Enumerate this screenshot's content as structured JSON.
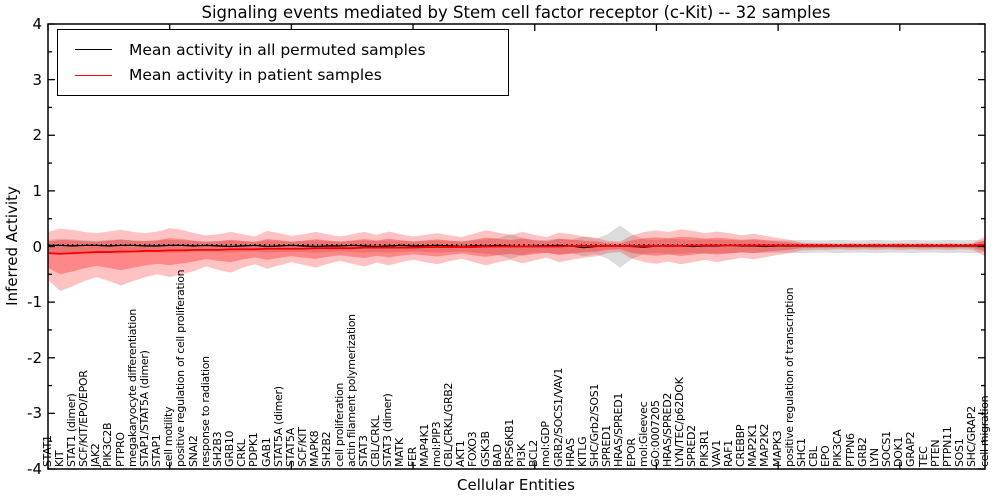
{
  "title": "Signaling events mediated by Stem cell factor receptor (c-Kit) -- 32 samples",
  "axes": {
    "xlabel": "Cellular Entities",
    "ylabel": "Inferred Activity",
    "ylim": [
      -4,
      4
    ],
    "yticks": [
      "4",
      "3",
      "2",
      "1",
      "0",
      "-1",
      "-2",
      "-3",
      "-4"
    ]
  },
  "legend": {
    "items": [
      {
        "label": "Mean activity in all permuted samples",
        "color": "#000000"
      },
      {
        "label": "Mean activity in patient samples",
        "color": "#ff0000"
      }
    ]
  },
  "chart_data": {
    "type": "line",
    "title": "Signaling events mediated by Stem cell factor receptor (c-Kit) -- 32 samples",
    "xlabel": "Cellular Entities",
    "ylabel": "Inferred Activity",
    "ylim": [
      -4,
      4
    ],
    "grid": false,
    "legend_position": "upper left",
    "categories": [
      "STAT1",
      "KIT",
      "STAT1 (dimer)",
      "SCF/KIT/EPO/EPOR",
      "JAK2",
      "PIK3C2B",
      "PTPRO",
      "megakaryocyte differentiation",
      "STAP1/STAT5A (dimer)",
      "STAP1",
      "cell motility",
      "positive regulation of cell proliferation",
      "SNAI2",
      "response to radiation",
      "SH2B3",
      "GRB10",
      "CRKL",
      "PDPK1",
      "GAB1",
      "STAT5A (dimer)",
      "STAT5A",
      "SCF/KIT",
      "MAPK8",
      "SH2B2",
      "cell proliferation",
      "actin filament polymerization",
      "STAT3",
      "CBL/CRKL",
      "STAT3 (dimer)",
      "MATK",
      "FER",
      "MAP4K1",
      "mol:PIP3",
      "CBL/CRKL/GRB2",
      "AKT1",
      "FOXO3",
      "GSK3B",
      "BAD",
      "RPS6KB1",
      "PI3K",
      "BCL2",
      "mol:GDP",
      "GRB2/SOCS1/VAV1",
      "HRAS",
      "KITLG",
      "SHC/Grb2/SOS1",
      "SPRED1",
      "HRAS/SPRED1",
      "EPOR",
      "mol:Gleevec",
      "GO:0007205",
      "HRAS/SPRED2",
      "LYN/TEC/p62DOK",
      "SPRED2",
      "PIK3R1",
      "VAV1",
      "RAF1",
      "CREBBP",
      "MAP2K1",
      "MAP2K2",
      "MAPK3",
      "positive regulation of transcription",
      "SHC1",
      "CBL",
      "EPO",
      "PIK3CA",
      "PTPN6",
      "GRB2",
      "LYN",
      "SOCS1",
      "DOK1",
      "GRAP2",
      "TEC",
      "PTEN",
      "PTPN11",
      "SOS1",
      "SHC/GRAP2",
      "cell migration"
    ],
    "series": [
      {
        "name": "Mean activity in all permuted samples",
        "color": "#000000",
        "style": "solid",
        "values": [
          0.02,
          0.02,
          0.01,
          0.02,
          0.02,
          0.01,
          0.02,
          0.02,
          0.01,
          0.01,
          0.02,
          0.02,
          0.01,
          0.02,
          0.01,
          0.0,
          0.01,
          0.02,
          0.0,
          0.01,
          0.02,
          0.01,
          0.0,
          0.01,
          0.01,
          0.02,
          0.01,
          0.0,
          0.01,
          0.02,
          0.01,
          0.01,
          0.02,
          0.01,
          0.0,
          0.01,
          0.01,
          0.02,
          0.01,
          0.0,
          0.01,
          0.01,
          0.02,
          0.01,
          -0.02,
          0.0,
          0.01,
          0.01,
          0.0,
          -0.01,
          0.01,
          0.02,
          0.01,
          0.0,
          0.01,
          0.01,
          0.02,
          0.01,
          0.01,
          0.0,
          0.01,
          0.01,
          0.01,
          0.01,
          0.01,
          0.01,
          0.01,
          0.01,
          0.01,
          0.01,
          0.01,
          0.01,
          0.01,
          0.01,
          0.01,
          0.01,
          0.01,
          0.01
        ]
      },
      {
        "name": "Mean activity in patient samples",
        "color": "#ff0000",
        "style": "solid",
        "values": [
          -0.12,
          -0.13,
          -0.12,
          -0.11,
          -0.1,
          -0.1,
          -0.09,
          -0.09,
          -0.08,
          -0.08,
          -0.07,
          -0.07,
          -0.06,
          -0.06,
          -0.06,
          -0.05,
          -0.05,
          -0.05,
          -0.04,
          -0.04,
          -0.04,
          -0.04,
          -0.03,
          -0.03,
          -0.03,
          -0.03,
          -0.02,
          -0.02,
          -0.02,
          -0.02,
          -0.02,
          -0.01,
          -0.01,
          -0.01,
          -0.01,
          -0.01,
          0,
          0,
          0,
          0,
          0,
          0,
          0,
          0.01,
          0.01,
          0.01,
          0.01,
          0.01,
          0.01,
          0.01,
          0.01,
          0.01,
          0.01,
          0.02,
          0.02,
          0.02,
          0.02,
          0.02,
          0.02,
          0.02,
          0.02,
          0.02,
          0.02,
          0.02,
          0.02,
          0.02,
          0.02,
          0.02,
          0.02,
          0.02,
          0.02,
          0.02,
          0.02,
          0.02,
          0.02,
          0.02,
          0.02,
          0.03
        ]
      },
      {
        "name": "baseline-dotted",
        "color": "#000000",
        "style": "dotted",
        "value": 0.03
      }
    ],
    "bands": [
      {
        "name": "permuted-samples-range",
        "color": "rgba(130,130,130,0.28)",
        "center": 0,
        "halfwidth": [
          0.12,
          0.14,
          0.13,
          0.11,
          0.1,
          0.12,
          0.13,
          0.11,
          0.1,
          0.11,
          0.12,
          0.11,
          0.1,
          0.09,
          0.1,
          0.11,
          0.1,
          0.09,
          0.11,
          0.1,
          0.09,
          0.1,
          0.11,
          0.1,
          0.09,
          0.1,
          0.11,
          0.1,
          0.11,
          0.1,
          0.09,
          0.1,
          0.11,
          0.1,
          0.09,
          0.11,
          0.13,
          0.15,
          0.22,
          0.15,
          0.11,
          0.12,
          0.14,
          0.12,
          0.18,
          0.14,
          0.22,
          0.38,
          0.22,
          0.13,
          0.12,
          0.14,
          0.13,
          0.12,
          0.13,
          0.12,
          0.12,
          0.11,
          0.12,
          0.11,
          0.11,
          0.11,
          0.12,
          0.11,
          0.11,
          0.12,
          0.11,
          0.11,
          0.12,
          0.11,
          0.11,
          0.12,
          0.11,
          0.11,
          0.12,
          0.11,
          0.12,
          0.1
        ]
      },
      {
        "name": "patient-samples-range-outer",
        "color": "rgba(255,0,0,0.24)",
        "upper": [
          0.26,
          0.32,
          0.3,
          0.26,
          0.24,
          0.27,
          0.3,
          0.26,
          0.24,
          0.27,
          0.33,
          0.3,
          0.24,
          0.2,
          0.22,
          0.26,
          0.22,
          0.18,
          0.28,
          0.24,
          0.19,
          0.22,
          0.26,
          0.22,
          0.18,
          0.22,
          0.26,
          0.21,
          0.27,
          0.22,
          0.18,
          0.21,
          0.24,
          0.2,
          0.17,
          0.23,
          0.29,
          0.25,
          0.21,
          0.26,
          0.21,
          0.17,
          0.25,
          0.22,
          0.18,
          0.16,
          0.1,
          0.09,
          0.2,
          0.26,
          0.29,
          0.26,
          0.31,
          0.28,
          0.24,
          0.27,
          0.24,
          0.2,
          0.23,
          0.19,
          0.15,
          0.12,
          0.07,
          0.06,
          0.06,
          0.05,
          0.06,
          0.05,
          0.06,
          0.05,
          0.06,
          0.05,
          0.06,
          0.05,
          0.06,
          0.05,
          0.06,
          0.18
        ],
        "lower": [
          -0.6,
          -0.8,
          -0.72,
          -0.62,
          -0.55,
          -0.62,
          -0.7,
          -0.62,
          -0.55,
          -0.5,
          -0.55,
          -0.5,
          -0.44,
          -0.36,
          -0.42,
          -0.47,
          -0.38,
          -0.32,
          -0.4,
          -0.34,
          -0.28,
          -0.33,
          -0.38,
          -0.31,
          -0.26,
          -0.31,
          -0.36,
          -0.29,
          -0.34,
          -0.28,
          -0.24,
          -0.28,
          -0.32,
          -0.26,
          -0.22,
          -0.28,
          -0.34,
          -0.28,
          -0.24,
          -0.3,
          -0.25,
          -0.2,
          -0.28,
          -0.24,
          -0.2,
          -0.18,
          -0.12,
          -0.1,
          -0.22,
          -0.28,
          -0.31,
          -0.27,
          -0.32,
          -0.28,
          -0.24,
          -0.28,
          -0.24,
          -0.2,
          -0.23,
          -0.19,
          -0.15,
          -0.12,
          -0.07,
          -0.06,
          -0.06,
          -0.05,
          -0.06,
          -0.05,
          -0.06,
          -0.05,
          -0.06,
          -0.05,
          -0.06,
          -0.05,
          -0.06,
          -0.05,
          -0.06,
          -0.18
        ]
      },
      {
        "name": "patient-samples-range-inner",
        "color": "rgba(255,0,0,0.30)",
        "scale_of_outer": 0.55
      }
    ]
  }
}
